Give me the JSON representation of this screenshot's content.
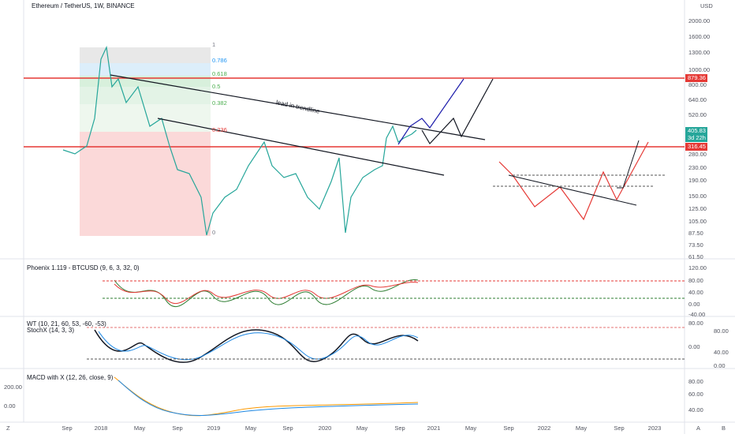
{
  "header": {
    "title": "Ethereum / TetherUS, 1W, BINANCE",
    "currency": "USD"
  },
  "price_axis": [
    "2000.00",
    "1600.00",
    "1300.00",
    "1000.00",
    "800.00",
    "640.00",
    "520.00",
    "280.00",
    "230.00",
    "190.00",
    "150.00",
    "125.00",
    "105.00",
    "87.50",
    "73.50",
    "61.50"
  ],
  "price_badges": [
    "879.36",
    "405.83",
    "3d 22h",
    "316.45"
  ],
  "time_axis": [
    "Sep",
    "2018",
    "May",
    "Sep",
    "2019",
    "May",
    "Sep",
    "2020",
    "May",
    "Sep",
    "2021",
    "May",
    "Sep",
    "2022",
    "May",
    "Sep",
    "2023"
  ],
  "fib_levels": [
    "1",
    "0.786",
    "0.618",
    "0.5",
    "0.382",
    "0.236",
    "0"
  ],
  "annotation": "lead in trendline",
  "panes": [
    {
      "title": "Phoenix 1.119 - BTCUSD (9, 6, 3, 32, 0)",
      "axis": [
        "120.00",
        "80.00",
        "40.00",
        "0.00",
        "-40.00"
      ]
    },
    {
      "title": "WT (10, 21, 60, 53, -60, -53)",
      "subtitle": "StochX (14, 3, 3)",
      "axis": [
        "80.00",
        "0.00"
      ],
      "axis2": [
        "80.00",
        "40.00",
        "0.00"
      ]
    },
    {
      "title": "MACD with X (12, 26, close, 9)",
      "axis_left": [
        "200.00",
        "0.00"
      ],
      "axis": [
        "80.00",
        "60.00",
        "40.00"
      ]
    }
  ],
  "footer": {
    "left": "Z",
    "right": [
      "A",
      "B"
    ]
  }
}
